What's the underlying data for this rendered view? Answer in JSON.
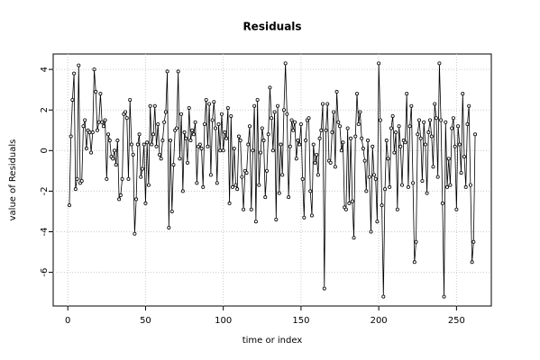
{
  "chart_data": {
    "type": "line",
    "title": "Residuals",
    "x_label": "time or index",
    "y_label": "value of Residuals",
    "x": [
      1,
      2,
      3,
      4,
      5,
      6,
      7,
      8,
      9,
      10,
      11,
      12,
      13,
      14,
      15,
      16,
      17,
      18,
      19,
      20,
      21,
      22,
      23,
      24,
      25,
      26,
      27,
      28,
      29,
      30,
      31,
      32,
      33,
      34,
      35,
      36,
      37,
      38,
      39,
      40,
      41,
      42,
      43,
      44,
      45,
      46,
      47,
      48,
      49,
      50,
      51,
      52,
      53,
      54,
      55,
      56,
      57,
      58,
      59,
      60,
      61,
      62,
      63,
      64,
      65,
      66,
      67,
      68,
      69,
      70,
      71,
      72,
      73,
      74,
      75,
      76,
      77,
      78,
      79,
      80,
      81,
      82,
      83,
      84,
      85,
      86,
      87,
      88,
      89,
      90,
      91,
      92,
      93,
      94,
      95,
      96,
      97,
      98,
      99,
      100,
      101,
      102,
      103,
      104,
      105,
      106,
      107,
      108,
      109,
      110,
      111,
      112,
      113,
      114,
      115,
      116,
      117,
      118,
      119,
      120,
      121,
      122,
      123,
      124,
      125,
      126,
      127,
      128,
      129,
      130,
      131,
      132,
      133,
      134,
      135,
      136,
      137,
      138,
      139,
      140,
      141,
      142,
      143,
      144,
      145,
      146,
      147,
      148,
      149,
      150,
      151,
      152,
      153,
      154,
      155,
      156,
      157,
      158,
      159,
      160,
      161,
      162,
      163,
      164,
      165,
      166,
      167,
      168,
      169,
      170,
      171,
      172,
      173,
      174,
      175,
      176,
      177,
      178,
      179,
      180,
      181,
      182,
      183,
      184,
      185,
      186,
      187,
      188,
      189,
      190,
      191,
      192,
      193,
      194,
      195,
      196,
      197,
      198,
      199,
      200,
      201,
      202,
      203,
      204,
      205,
      206,
      207,
      208,
      209,
      210,
      211,
      212,
      213,
      214,
      215,
      216,
      217,
      218,
      219,
      220,
      221,
      222,
      223,
      224,
      225,
      226,
      227,
      228,
      229,
      230,
      231,
      232,
      233,
      234,
      235,
      236,
      237,
      238,
      239,
      240,
      241,
      242,
      243,
      244,
      245,
      246,
      247,
      248,
      249,
      250,
      251,
      252,
      253,
      254,
      255,
      256,
      257,
      258,
      259,
      260,
      261,
      262
    ],
    "values": [
      -2.7,
      0.7,
      2.5,
      3.8,
      -1.9,
      -1.4,
      4.2,
      -1.6,
      -1.5,
      1.2,
      1.5,
      0.1,
      1.0,
      0.9,
      -0.1,
      0.9,
      4.0,
      2.9,
      1.0,
      1.4,
      2.8,
      1.4,
      1.2,
      1.5,
      -1.4,
      0.8,
      0.5,
      -0.3,
      -0.4,
      0.0,
      -0.7,
      0.5,
      -2.4,
      -2.2,
      -1.4,
      1.8,
      1.9,
      1.6,
      -1.4,
      2.5,
      0.3,
      -0.2,
      -4.1,
      -2.4,
      0.3,
      0.8,
      -1.3,
      -0.9,
      0.3,
      -2.6,
      0.4,
      -1.7,
      2.2,
      0.3,
      0.8,
      2.2,
      0.2,
      1.3,
      -0.2,
      -0.4,
      0.5,
      1.4,
      1.9,
      3.9,
      -3.8,
      0.5,
      -3.0,
      -0.7,
      1.0,
      1.1,
      3.9,
      -0.4,
      1.8,
      -2.0,
      0.9,
      0.6,
      -0.6,
      2.1,
      0.5,
      1.0,
      0.8,
      1.4,
      -1.6,
      0.2,
      0.3,
      0.1,
      -1.8,
      1.3,
      2.5,
      0.2,
      2.3,
      -1.2,
      1.5,
      2.4,
      1.1,
      -1.6,
      1.3,
      0.0,
      1.8,
      0.0,
      0.9,
      0.6,
      2.1,
      -2.6,
      1.7,
      -1.8,
      0.1,
      -1.7,
      -1.9,
      0.7,
      0.5,
      -1.3,
      -2.9,
      -1.0,
      -1.1,
      0.3,
      1.2,
      -2.9,
      0.0,
      2.2,
      -3.5,
      2.5,
      -1.7,
      -0.1,
      1.1,
      0.5,
      -2.3,
      -1.0,
      0.8,
      3.1,
      1.6,
      0.0,
      1.9,
      -3.4,
      2.2,
      -2.1,
      0.3,
      -1.2,
      2.0,
      4.3,
      1.8,
      -2.3,
      0.2,
      1.5,
      1.0,
      1.4,
      -0.4,
      0.5,
      0.3,
      1.3,
      -1.4,
      -3.3,
      0.5,
      1.5,
      1.6,
      -2.0,
      -3.2,
      0.3,
      -0.6,
      -0.2,
      -1.2,
      0.6,
      1.0,
      2.3,
      -6.8,
      1.0,
      2.3,
      -0.5,
      -0.6,
      0.9,
      1.9,
      -0.8,
      2.9,
      1.4,
      1.2,
      0.0,
      0.4,
      -2.8,
      -2.9,
      1.1,
      -2.6,
      0.6,
      -2.5,
      -4.3,
      0.7,
      2.8,
      1.3,
      1.9,
      0.6,
      0.1,
      -0.5,
      -2.0,
      0.5,
      -1.3,
      -4.0,
      0.2,
      -1.2,
      -1.4,
      -3.5,
      4.3,
      1.5,
      -2.7,
      -7.2,
      -1.9,
      0.5,
      -0.4,
      -1.8,
      1.1,
      1.7,
      -0.1,
      0.9,
      -2.9,
      1.2,
      0.2,
      -1.7,
      0.5,
      0.4,
      2.8,
      -1.8,
      1.2,
      2.2,
      -1.6,
      -5.5,
      -4.5,
      0.8,
      1.5,
      0.6,
      -1.5,
      1.4,
      0.3,
      -2.1,
      0.9,
      1.5,
      0.7,
      -0.8,
      2.3,
      1.6,
      -1.3,
      4.3,
      1.5,
      -2.6,
      -7.2,
      1.4,
      -1.8,
      -0.4,
      -1.7,
      1.1,
      1.6,
      0.2,
      -2.9,
      1.2,
      0.3,
      -1.1,
      2.8,
      -0.3,
      -1.8,
      1.3,
      2.2,
      -1.7,
      -5.5,
      -4.5,
      0.8
    ],
    "color": "#000000",
    "xlim": [
      -9.4,
      272.4
    ],
    "xticks": [
      0,
      50,
      100,
      150,
      200,
      250
    ],
    "ylim": [
      -7.66,
      4.76
    ],
    "yticks": [
      -6,
      -4,
      -2,
      0,
      2,
      4
    ],
    "grid": true
  }
}
